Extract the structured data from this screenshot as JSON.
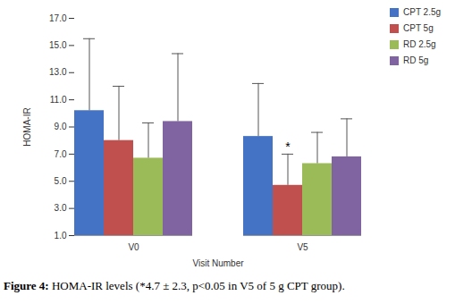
{
  "chart_data": {
    "type": "bar",
    "categories": [
      "V0",
      "V5"
    ],
    "series": [
      {
        "name": "CPT 2.5g",
        "color": "#4472c4",
        "values": [
          10.2,
          8.3
        ],
        "errors": [
          5.3,
          3.9
        ]
      },
      {
        "name": "CPT 5g",
        "color": "#c0504d",
        "values": [
          8.0,
          4.7
        ],
        "errors": [
          4.0,
          2.3
        ]
      },
      {
        "name": "RD 2.5g",
        "color": "#9bbb59",
        "values": [
          6.7,
          6.3
        ],
        "errors": [
          2.6,
          2.3
        ]
      },
      {
        "name": "RD 5g",
        "color": "#8064a2",
        "values": [
          9.4,
          6.8
        ],
        "errors": [
          5.0,
          2.8
        ]
      }
    ],
    "xlabel": "Visit Number",
    "ylabel": "HOMA-IR",
    "ylim": [
      1,
      17
    ],
    "yticks": [
      {
        "value": 1,
        "label": "1.0"
      },
      {
        "value": 3,
        "label": "3.0"
      },
      {
        "value": 5,
        "label": "5.0"
      },
      {
        "value": 7,
        "label": "7.0"
      },
      {
        "value": 9,
        "label": "9.0"
      },
      {
        "value": 11,
        "label": "11.0"
      },
      {
        "value": 13,
        "label": "13.0"
      },
      {
        "value": 15,
        "label": "15.0"
      },
      {
        "value": 17,
        "label": "17.0"
      }
    ],
    "grid": false,
    "legend": "top-right",
    "annotations": [
      {
        "text": "*",
        "series": "CPT 5g",
        "category": "V5"
      }
    ],
    "caption": {
      "label": "Figure 4:",
      "text": "HOMA-IR levels (*4.7 ± 2.3, p<0.05 in V5 of 5 g CPT group)."
    }
  }
}
